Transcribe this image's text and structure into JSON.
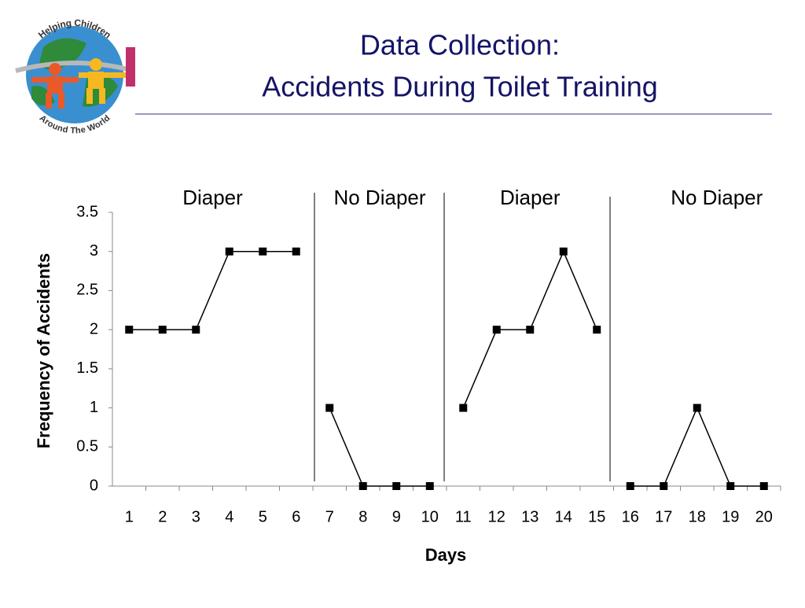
{
  "chart_data": {
    "type": "line",
    "title": "Data Collection:",
    "subtitle": "Accidents During Toilet Training",
    "logo_text": {
      "top": "Helping Children",
      "bottom": "Around The World"
    },
    "x_label": "Days",
    "y_label": "Frequency of Accidents",
    "categories": [
      "1",
      "2",
      "3",
      "4",
      "5",
      "6",
      "7",
      "8",
      "9",
      "10",
      "11",
      "12",
      "13",
      "14",
      "15",
      "16",
      "17",
      "18",
      "19",
      "20"
    ],
    "series": [
      {
        "name": "Diaper",
        "color": "#000000",
        "values": [
          2,
          2,
          2,
          3,
          3,
          3,
          null,
          null,
          null,
          null,
          null,
          null,
          null,
          null,
          null,
          null,
          null,
          null,
          null,
          null
        ]
      },
      {
        "name": "No Diaper",
        "color": "#000000",
        "values": [
          null,
          null,
          null,
          null,
          null,
          null,
          1,
          0,
          0,
          0,
          null,
          null,
          null,
          null,
          null,
          null,
          null,
          null,
          null,
          null
        ]
      },
      {
        "name": "Diaper",
        "color": "#000000",
        "values": [
          null,
          null,
          null,
          null,
          null,
          null,
          null,
          null,
          null,
          null,
          1,
          2,
          2,
          3,
          2,
          null,
          null,
          null,
          null,
          null
        ]
      },
      {
        "name": "No Diaper",
        "color": "#000000",
        "values": [
          null,
          null,
          null,
          null,
          null,
          null,
          null,
          null,
          null,
          null,
          null,
          null,
          null,
          null,
          null,
          0,
          0,
          1,
          0,
          0
        ]
      }
    ],
    "ylim": [
      0,
      3.5
    ],
    "yticks": [
      0,
      0.5,
      1,
      1.5,
      2,
      2.5,
      3,
      3.5
    ],
    "grid": false,
    "legend": false
  }
}
